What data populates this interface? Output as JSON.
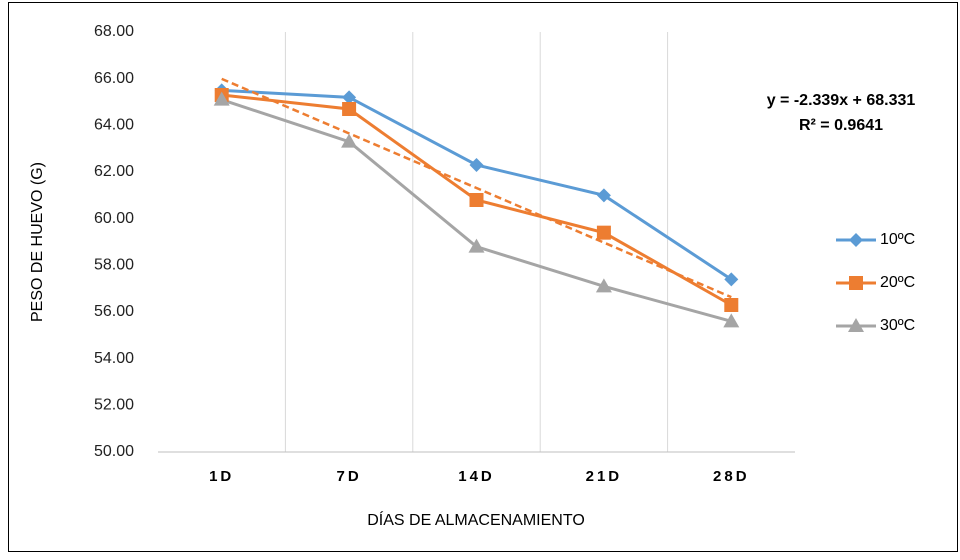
{
  "chart_data": {
    "type": "line",
    "y_label": "PESO DE HUEVO (G)",
    "x_label": "DÍAS DE ALMACENAMIENTO",
    "categories": [
      "1D",
      "7D",
      "14D",
      "21D",
      "28D"
    ],
    "series": [
      {
        "name": "10ºC",
        "color": "#5b9bd5",
        "marker": "diamond",
        "values": [
          65.5,
          65.2,
          62.3,
          61.0,
          57.4
        ]
      },
      {
        "name": "20ºC",
        "color": "#ed7d31",
        "marker": "square",
        "values": [
          65.3,
          64.7,
          60.8,
          59.4,
          56.3
        ]
      },
      {
        "name": "30ºC",
        "color": "#a5a5a5",
        "marker": "triangle",
        "values": [
          65.1,
          63.3,
          58.8,
          57.1,
          55.6
        ]
      }
    ],
    "trendline": {
      "color": "#ed7d31",
      "slope": -2.339,
      "intercept": 68.331,
      "equation": "y = -2.339x + 68.331",
      "r_squared": 0.9641,
      "r_squared_label": "R² = 0.9641"
    },
    "ylim": [
      50,
      68
    ],
    "yticks": [
      {
        "value": 50,
        "label": "50.00"
      },
      {
        "value": 52,
        "label": "52.00"
      },
      {
        "value": 54,
        "label": "54.00"
      },
      {
        "value": 56,
        "label": "56.00"
      },
      {
        "value": 58,
        "label": "58.00"
      },
      {
        "value": 60,
        "label": "60.00"
      },
      {
        "value": 62,
        "label": "62.00"
      },
      {
        "value": 64,
        "label": "64.00"
      },
      {
        "value": 66,
        "label": "66.00"
      },
      {
        "value": 68,
        "label": "68.00"
      }
    ],
    "grid": true,
    "legend": "right"
  }
}
